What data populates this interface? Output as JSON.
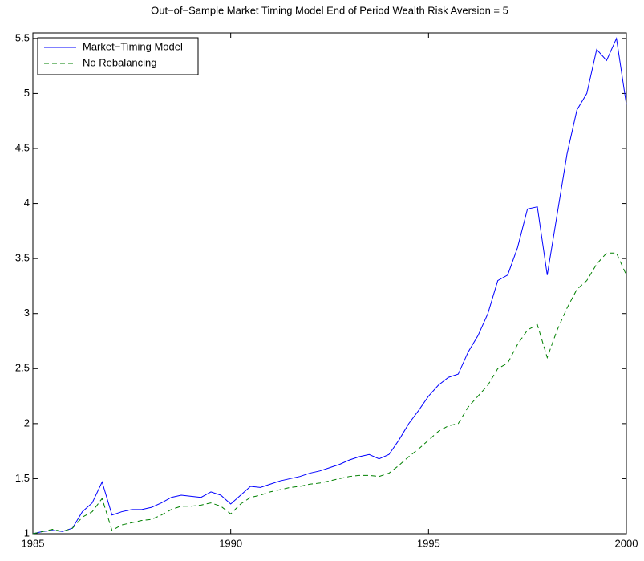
{
  "chart_data": {
    "type": "line",
    "title": "Out−of−Sample Market Timing Model End of Period Wealth Risk Aversion = 5",
    "x": [
      1985,
      1985.25,
      1985.5,
      1985.75,
      1986,
      1986.25,
      1986.5,
      1986.75,
      1987,
      1987.25,
      1987.5,
      1987.75,
      1988,
      1988.25,
      1988.5,
      1988.75,
      1989,
      1989.25,
      1989.5,
      1989.75,
      1990,
      1990.25,
      1990.5,
      1990.75,
      1991,
      1991.25,
      1991.5,
      1991.75,
      1992,
      1992.25,
      1992.5,
      1992.75,
      1993,
      1993.25,
      1993.5,
      1993.75,
      1994,
      1994.25,
      1994.5,
      1994.75,
      1995,
      1995.25,
      1995.5,
      1995.75,
      1996,
      1996.25,
      1996.5,
      1996.75,
      1997,
      1997.25,
      1997.5,
      1997.75,
      1998,
      1998.25,
      1998.5,
      1998.75,
      1999,
      1999.25,
      1999.5,
      1999.75,
      2000
    ],
    "series": [
      {
        "name": "Market−Timing Model",
        "color": "#0000ff",
        "dash": "solid",
        "values": [
          1.0,
          1.02,
          1.03,
          1.02,
          1.05,
          1.2,
          1.28,
          1.47,
          1.17,
          1.2,
          1.22,
          1.22,
          1.24,
          1.28,
          1.33,
          1.35,
          1.34,
          1.33,
          1.38,
          1.35,
          1.27,
          1.35,
          1.43,
          1.42,
          1.45,
          1.48,
          1.5,
          1.52,
          1.55,
          1.57,
          1.6,
          1.63,
          1.67,
          1.7,
          1.72,
          1.68,
          1.72,
          1.85,
          2.0,
          2.12,
          2.25,
          2.35,
          2.42,
          2.45,
          2.65,
          2.8,
          3.0,
          3.3,
          3.35,
          3.6,
          3.95,
          3.97,
          3.35,
          3.9,
          4.45,
          4.85,
          5.0,
          5.4,
          5.3,
          5.5,
          4.9
        ]
      },
      {
        "name": "No Rebalancing",
        "color": "#008000",
        "dash": "dashed",
        "values": [
          1.0,
          1.02,
          1.04,
          1.02,
          1.05,
          1.15,
          1.2,
          1.32,
          1.03,
          1.08,
          1.1,
          1.12,
          1.13,
          1.17,
          1.22,
          1.25,
          1.25,
          1.26,
          1.28,
          1.25,
          1.18,
          1.27,
          1.33,
          1.35,
          1.38,
          1.4,
          1.42,
          1.43,
          1.45,
          1.46,
          1.48,
          1.5,
          1.52,
          1.53,
          1.53,
          1.52,
          1.55,
          1.62,
          1.7,
          1.77,
          1.85,
          1.93,
          1.98,
          2.0,
          2.15,
          2.25,
          2.35,
          2.5,
          2.55,
          2.72,
          2.85,
          2.9,
          2.6,
          2.85,
          3.05,
          3.22,
          3.3,
          3.45,
          3.55,
          3.55,
          3.35
        ]
      }
    ],
    "xlim": [
      1985,
      2000
    ],
    "xticks": [
      1985,
      1990,
      1995,
      2000
    ],
    "ylim": [
      1,
      5.55
    ],
    "yticks": [
      1,
      1.5,
      2,
      2.5,
      3,
      3.5,
      4,
      4.5,
      5,
      5.5
    ],
    "grid": false,
    "legend": "upper-left"
  }
}
